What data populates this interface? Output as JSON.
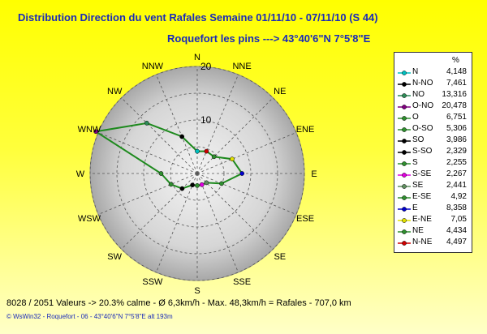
{
  "header": {
    "title": "Distribution Direction du vent Rafales  Semaine 01/11/10 - 07/11/10 (S 44)",
    "subtitle": "Roquefort les pins    --->  43°40'6\"N 7°5'8\"E"
  },
  "legend": {
    "unit": "%",
    "items": [
      {
        "label": "N",
        "value": "4,148",
        "color": "#00c0c0"
      },
      {
        "label": "N-NO",
        "value": "7,461",
        "color": "#000000"
      },
      {
        "label": "NO",
        "value": "13,316",
        "color": "#2e8b57"
      },
      {
        "label": "O-NO",
        "value": "20,478",
        "color": "#800080"
      },
      {
        "label": "O",
        "value": "6,751",
        "color": "#2f8f2f"
      },
      {
        "label": "O-SO",
        "value": "5,306",
        "color": "#2f8f2f"
      },
      {
        "label": "SO",
        "value": "3,986",
        "color": "#000000"
      },
      {
        "label": "S-SO",
        "value": "2,329",
        "color": "#000000"
      },
      {
        "label": "S",
        "value": "2,255",
        "color": "#2f8f2f"
      },
      {
        "label": "S-SE",
        "value": "2,267",
        "color": "#e000e0"
      },
      {
        "label": "SE",
        "value": "2,441",
        "color": "#5f8f5f"
      },
      {
        "label": "E-SE",
        "value": "4,92",
        "color": "#2f8f2f"
      },
      {
        "label": "E",
        "value": "8,358",
        "color": "#0000cc"
      },
      {
        "label": "E-NE",
        "value": "7,05",
        "color": "#e0e000"
      },
      {
        "label": "NE",
        "value": "4,434",
        "color": "#2f8f2f"
      },
      {
        "label": "N-NE",
        "value": "4,497",
        "color": "#d00000"
      }
    ]
  },
  "summary": "8028 / 2051 Valeurs  -> 20.3% calme   -   Ø 6,3km/h  -  Max. 48,3km/h = Rafales   -   707,0 km",
  "footer": "© WsWin32  -  Roquefort - 06  -  43°40'6\"N 7°5'8\"E alt 193m",
  "chart_data": {
    "type": "radar",
    "directions": [
      "N",
      "NNE",
      "NE",
      "ENE",
      "E",
      "ESE",
      "SE",
      "SSE",
      "S",
      "SSW",
      "SW",
      "WSW",
      "W",
      "WNW",
      "NW",
      "NNW"
    ],
    "ring_labels": [
      "10",
      "20"
    ],
    "r_max": 20,
    "series": [
      {
        "name": "Rafales",
        "color": "#1e8a1e",
        "values": [
          4.148,
          4.497,
          4.434,
          7.05,
          8.358,
          4.92,
          2.441,
          2.267,
          2.255,
          2.329,
          3.986,
          5.306,
          6.751,
          20.478,
          13.316,
          7.461
        ]
      }
    ],
    "grid": true,
    "legend_position": "right"
  }
}
